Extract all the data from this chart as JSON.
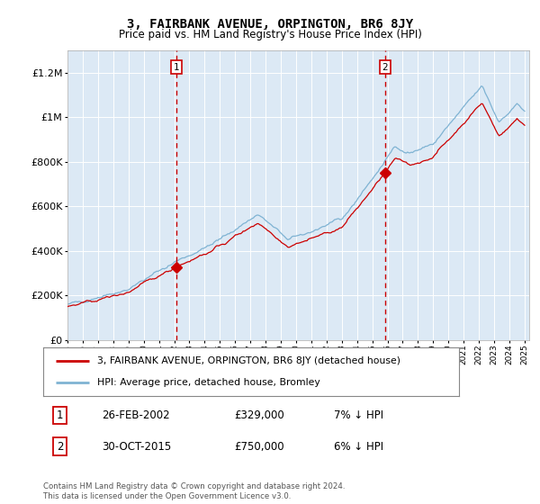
{
  "title": "3, FAIRBANK AVENUE, ORPINGTON, BR6 8JY",
  "subtitle": "Price paid vs. HM Land Registry's House Price Index (HPI)",
  "legend_label_red": "3, FAIRBANK AVENUE, ORPINGTON, BR6 8JY (detached house)",
  "legend_label_blue": "HPI: Average price, detached house, Bromley",
  "annotation1_date": "26-FEB-2002",
  "annotation1_price": "£329,000",
  "annotation1_hpi": "7% ↓ HPI",
  "annotation1_year": 2002.15,
  "annotation1_value": 329000,
  "annotation2_date": "30-OCT-2015",
  "annotation2_price": "£750,000",
  "annotation2_hpi": "6% ↓ HPI",
  "annotation2_year": 2015.83,
  "annotation2_value": 750000,
  "footer": "Contains HM Land Registry data © Crown copyright and database right 2024.\nThis data is licensed under the Open Government Licence v3.0.",
  "bg_color": "#dce9f5",
  "red_color": "#cc0000",
  "blue_color": "#7fb3d3",
  "grid_color": "#ffffff",
  "spine_color": "#aaaaaa",
  "ylim_max": 1300000,
  "xlim_min": 1995,
  "xlim_max": 2025.3,
  "start_year": 1995,
  "end_year": 2025
}
